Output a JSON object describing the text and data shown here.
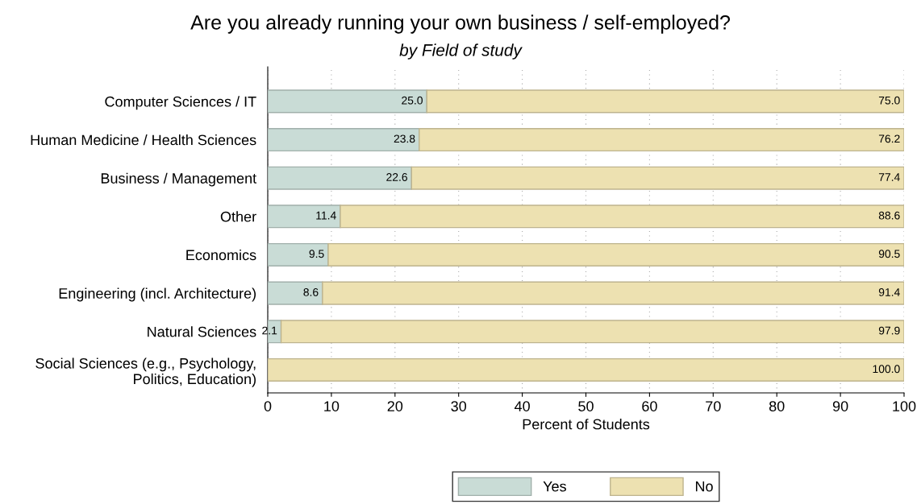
{
  "chart_data": {
    "type": "bar",
    "orientation": "horizontal",
    "stacked": true,
    "title": "Are you already running your own business / self-employed?",
    "subtitle": "by Field of study",
    "xlabel": "Percent of Students",
    "categories": [
      "Computer Sciences / IT",
      "Human Medicine / Health Sciences",
      "Business / Management",
      "Other",
      "Economics",
      "Engineering (incl. Architecture)",
      "Natural Sciences",
      "Social Sciences (e.g., Psychology,\nPolitics, Education)"
    ],
    "series": [
      {
        "name": "Yes",
        "color": "#c9dcd6",
        "values": [
          25.0,
          23.8,
          22.6,
          11.4,
          9.5,
          8.6,
          2.1,
          0
        ],
        "value_labels": [
          "25.0",
          "23.8",
          "22.6",
          "11.4",
          "9.5",
          "8.6",
          "2.1",
          null
        ]
      },
      {
        "name": "No",
        "color": "#ede1b1",
        "values": [
          75.0,
          76.2,
          77.4,
          88.6,
          90.5,
          91.4,
          97.9,
          100.0
        ],
        "value_labels": [
          "75.0",
          "76.2",
          "77.4",
          "88.6",
          "90.5",
          "91.4",
          "97.9",
          "100.0"
        ]
      }
    ],
    "xlim": [
      0,
      100
    ],
    "xticks": [
      0,
      10,
      20,
      30,
      40,
      50,
      60,
      70,
      80,
      90,
      100
    ],
    "grid": "x",
    "legend": "bottom"
  }
}
